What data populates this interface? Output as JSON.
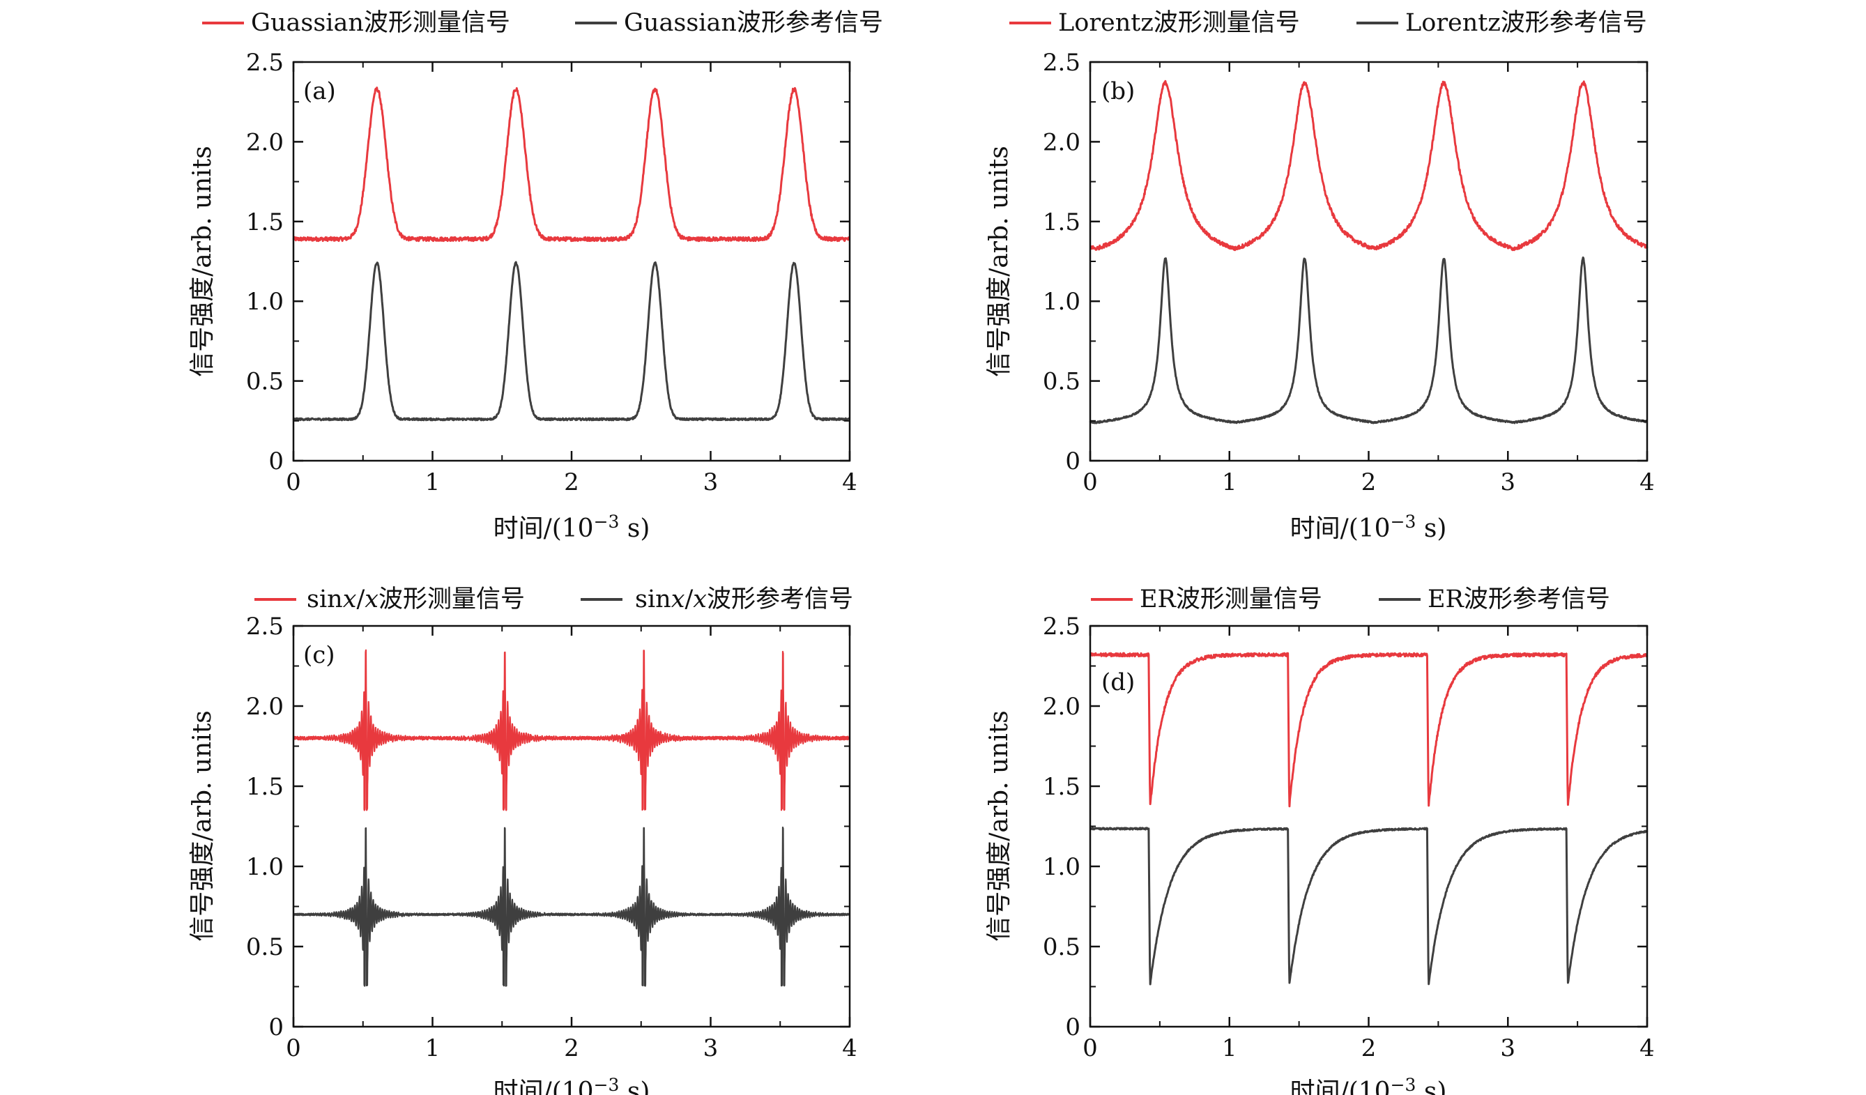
{
  "colors": {
    "measured": "#e8393e",
    "reference": "#3f3f3f",
    "axis": "#111111"
  },
  "shared": {
    "xlabel": "时间/(10−3 s)",
    "xlabel_main": "时间/(10",
    "xlabel_exp": "−3",
    "xlabel_tail": " s)",
    "ylabel": "信号强度/arb. units"
  },
  "chart_data": [
    {
      "id": "a",
      "type": "line",
      "panel_label": "(a)",
      "legend": [
        "Guassian波形测量信号",
        "Guassian波形参考信号"
      ],
      "xlim": [
        0,
        4
      ],
      "ylim": [
        0,
        2.5
      ],
      "xticks": [
        "0",
        "1",
        "2",
        "3",
        "4"
      ],
      "yticks": [
        "0",
        "0.5",
        "1.0",
        "1.5",
        "2.0",
        "2.5"
      ],
      "period": 1.0,
      "first_peak": 0.6,
      "series": [
        {
          "name": "Guassian波形测量信号",
          "shape": "gaussian",
          "baseline": 1.39,
          "peak": 2.33,
          "width": 0.065,
          "noise": 0.012
        },
        {
          "name": "Guassian波形参考信号",
          "shape": "gaussian",
          "baseline": 0.26,
          "peak": 1.24,
          "width": 0.05,
          "noise": 0.006
        }
      ]
    },
    {
      "id": "b",
      "type": "line",
      "panel_label": "(b)",
      "legend": [
        "Lorentz波形测量信号",
        "Lorentz波形参考信号"
      ],
      "xlim": [
        0,
        4
      ],
      "ylim": [
        0,
        2.5
      ],
      "xticks": [
        "0",
        "1",
        "2",
        "3",
        "4"
      ],
      "yticks": [
        "0",
        "0.5",
        "1.0",
        "1.5",
        "2.0",
        "2.5"
      ],
      "period": 1.0,
      "first_peak": 0.54,
      "series": [
        {
          "name": "Lorentz波形测量信号",
          "shape": "lorentz",
          "baseline": 1.33,
          "peak": 2.33,
          "width": 0.11,
          "noise": 0.012
        },
        {
          "name": "Lorentz波形参考信号",
          "shape": "lorentz",
          "baseline": 0.24,
          "peak": 1.23,
          "width": 0.045,
          "noise": 0.005
        }
      ]
    },
    {
      "id": "c",
      "type": "line",
      "panel_label": "(c)",
      "legend": [
        "sinx/x波形测量信号",
        "sinx/x波形参考信号"
      ],
      "legend_parts": [
        [
          "sin",
          "x",
          "/",
          "x",
          "波形测量信号"
        ],
        [
          "sin",
          "x",
          "/",
          "x",
          "波形参考信号"
        ]
      ],
      "xlim": [
        0,
        4
      ],
      "ylim": [
        0,
        2.5
      ],
      "xticks": [
        "0",
        "1",
        "2",
        "3",
        "4"
      ],
      "yticks": [
        "0",
        "0.5",
        "1.0",
        "1.5",
        "2.0",
        "2.5"
      ],
      "period": 1.0,
      "first_peak": 0.52,
      "series": [
        {
          "name": "sinx/x波形测量信号",
          "shape": "sinc",
          "baseline": 1.8,
          "peak": 2.34,
          "low": 1.36,
          "noise": 0.01
        },
        {
          "name": "sinx/x波形参考信号",
          "shape": "sinc",
          "baseline": 0.7,
          "peak": 1.24,
          "low": 0.26,
          "noise": 0.006
        }
      ]
    },
    {
      "id": "d",
      "type": "line",
      "panel_label": "(d)",
      "legend": [
        "ER波形测量信号",
        "ER波形参考信号"
      ],
      "xlim": [
        0,
        4
      ],
      "ylim": [
        0,
        2.5
      ],
      "xticks": [
        "0",
        "1",
        "2",
        "3",
        "4"
      ],
      "yticks": [
        "0",
        "0.5",
        "1.0",
        "1.5",
        "2.0",
        "2.5"
      ],
      "period": 1.0,
      "first_peak": 0.42,
      "series": [
        {
          "name": "ER波形测量信号",
          "shape": "er",
          "baseline": 2.32,
          "low": 1.37,
          "tau": 0.1,
          "noise": 0.01
        },
        {
          "name": "ER波形参考信号",
          "shape": "er",
          "baseline": 1.235,
          "low": 0.26,
          "tau": 0.14,
          "noise": 0.005
        }
      ]
    }
  ]
}
